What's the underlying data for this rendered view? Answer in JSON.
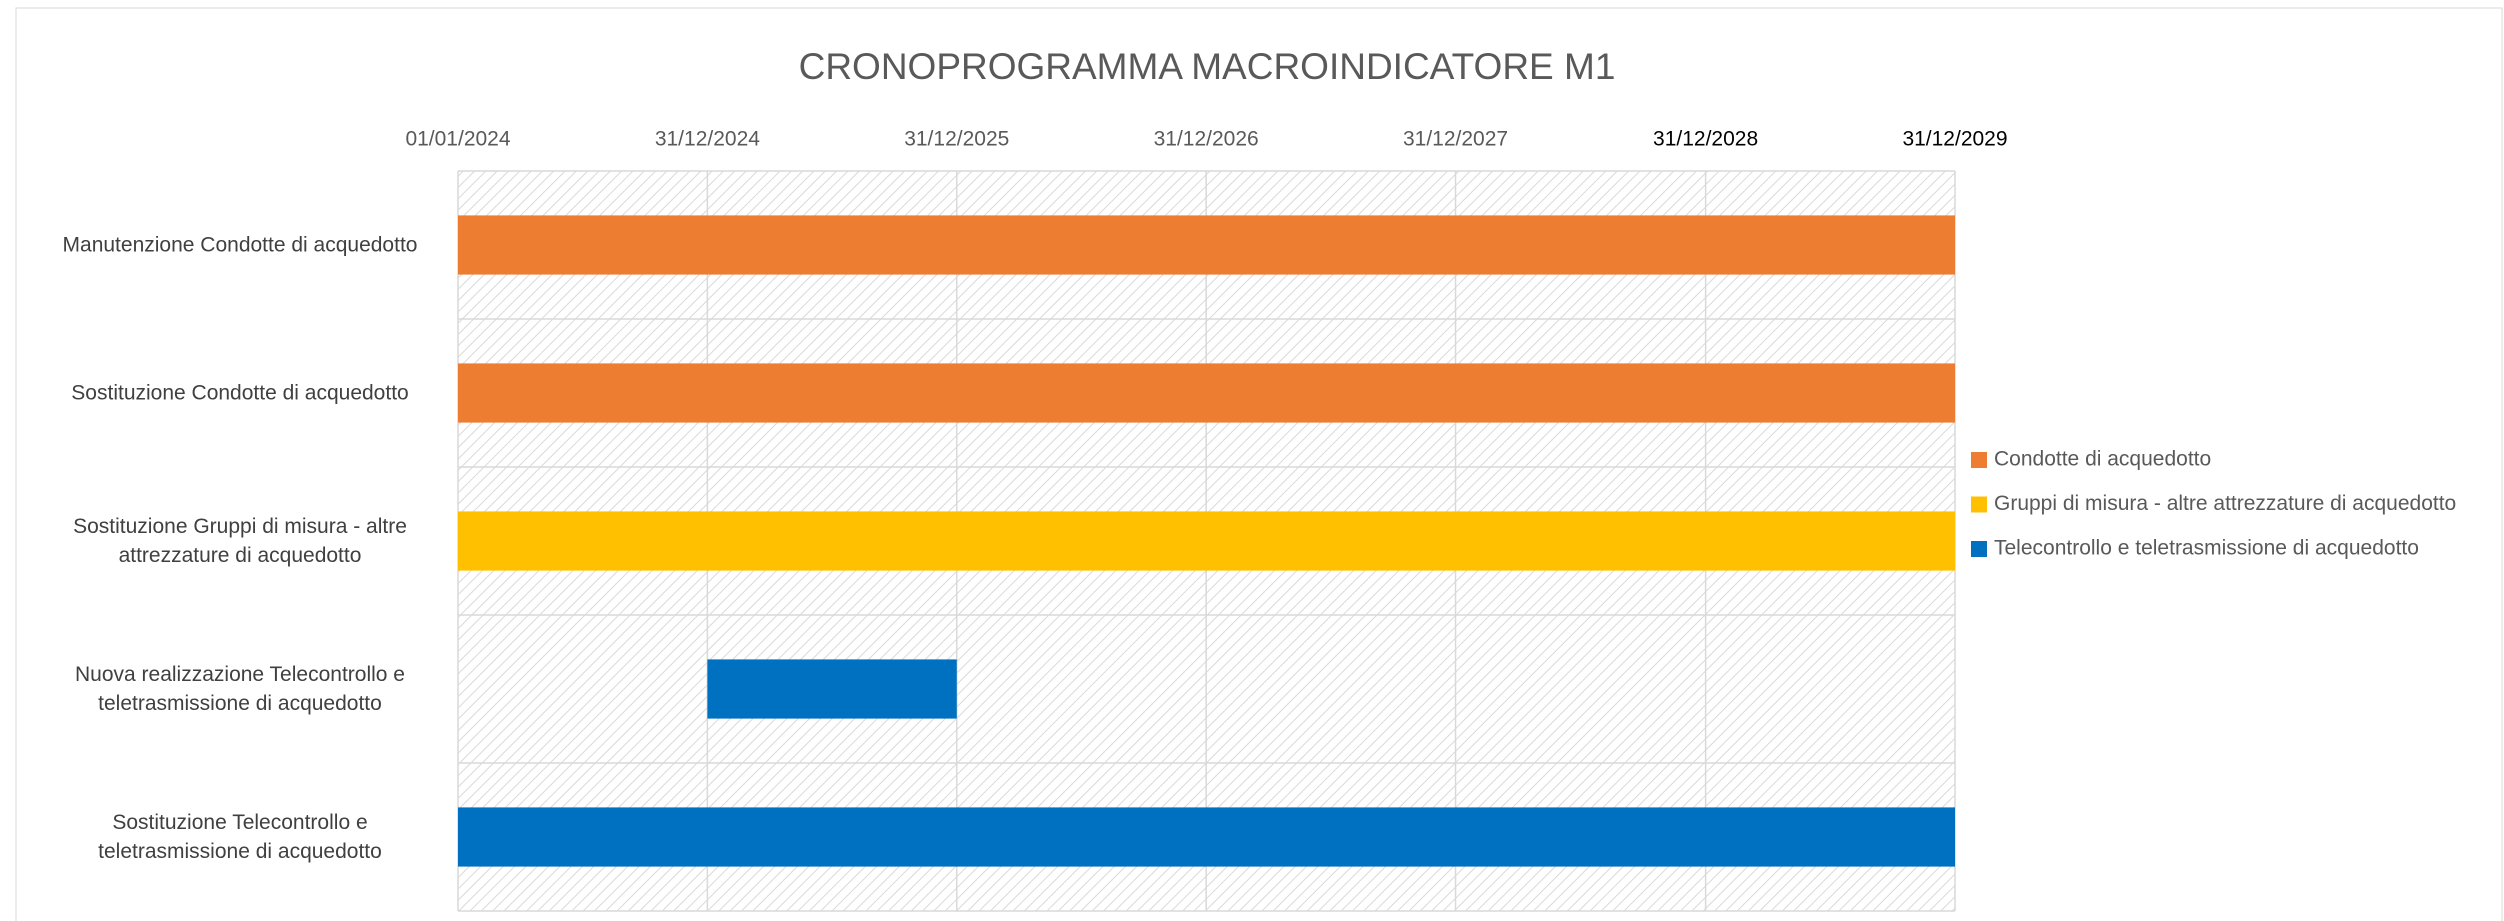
{
  "chart_data": {
    "type": "gantt",
    "title": "CRONOPROGRAMMA MACROINDICATORE M1",
    "categories": [
      "Manutenzione Condotte di acquedotto",
      "Sostituzione Condotte di acquedotto",
      "Sostituzione Gruppi di misura - altre attrezzature di acquedotto",
      "Nuova realizzazione Telecontrollo e teletrasmissione di acquedotto",
      "Sostituzione Telecontrollo e teletrasmissione di acquedotto"
    ],
    "series": [
      {
        "name": "Condotte di acquedotto",
        "color": "#ed7d31",
        "start": [
          "2024-01-01",
          "2024-01-01",
          null,
          null,
          null
        ],
        "end": [
          "2029-12-31",
          "2029-12-31",
          null,
          null,
          null
        ]
      },
      {
        "name": "Gruppi di misura - altre attrezzature di acquedotto",
        "color": "#ffc000",
        "start": [
          null,
          null,
          "2024-01-01",
          null,
          null
        ],
        "end": [
          null,
          null,
          "2029-12-31",
          null,
          null
        ]
      },
      {
        "name": "Telecontrollo e teletrasmissione di acquedotto",
        "color": "#0070c0",
        "start": [
          null,
          null,
          null,
          "2024-12-31",
          "2024-01-01"
        ],
        "end": [
          null,
          null,
          null,
          "2025-12-31",
          "2029-12-31"
        ]
      }
    ],
    "xlim": [
      "2024-01-01",
      "2029-12-31"
    ],
    "xticks": [
      {
        "value": "2024-01-01",
        "label": "01/01/2024"
      },
      {
        "value": "2024-12-31",
        "label": "31/12/2024"
      },
      {
        "value": "2025-12-31",
        "label": "31/12/2025"
      },
      {
        "value": "2026-12-31",
        "label": "31/12/2026"
      },
      {
        "value": "2027-12-31",
        "label": "31/12/2027"
      },
      {
        "value": "2028-12-31",
        "label": "31/12/2028"
      },
      {
        "value": "2029-12-31",
        "label": "31/12/2029"
      }
    ],
    "xaxis_position": "top",
    "grid": true,
    "legend": "right"
  }
}
